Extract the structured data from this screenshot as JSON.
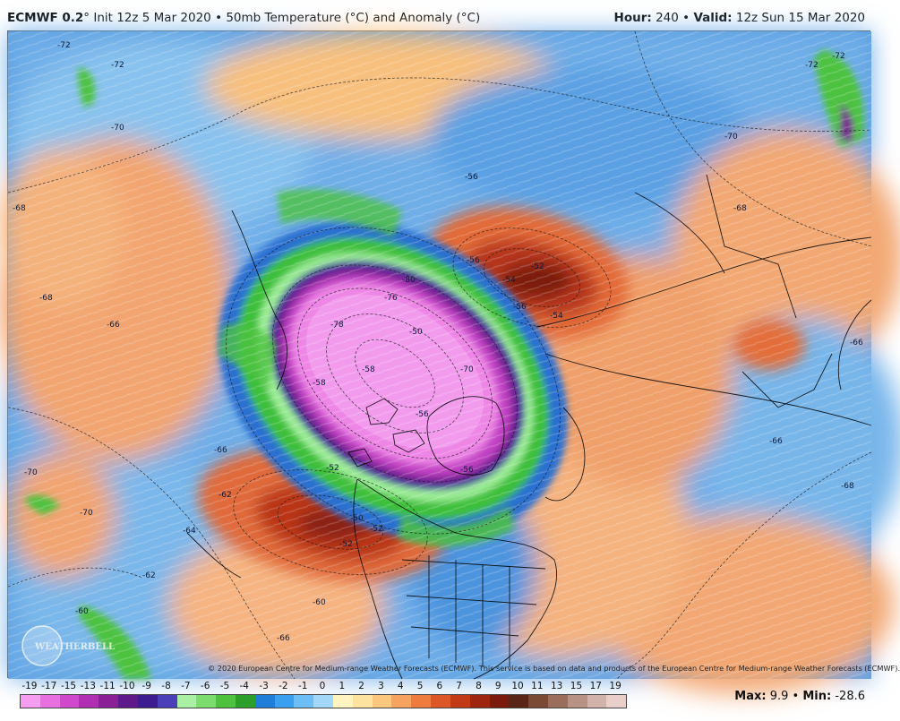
{
  "header": {
    "model": "ECMWF 0.2",
    "degree": "°",
    "init_text": "Init 12z 5 Mar 2020",
    "bullet": "•",
    "product": "50mb Temperature (°C) and Anomaly (°C)",
    "hour_label": "Hour:",
    "hour_value": "240",
    "valid_label": "Valid:",
    "valid_value": "12z Sun 15 Mar 2020"
  },
  "map": {
    "contour_labels": [
      {
        "text": "-72"
      },
      {
        "text": "-72"
      },
      {
        "text": "-72"
      },
      {
        "text": "-72"
      },
      {
        "text": "-70"
      },
      {
        "text": "-70"
      },
      {
        "text": "-70"
      },
      {
        "text": "-70"
      },
      {
        "text": "-68"
      },
      {
        "text": "-68"
      },
      {
        "text": "-68"
      },
      {
        "text": "-68"
      },
      {
        "text": "-66"
      },
      {
        "text": "-66"
      },
      {
        "text": "-66"
      },
      {
        "text": "-66"
      },
      {
        "text": "-62"
      },
      {
        "text": "-60"
      },
      {
        "text": "-60"
      },
      {
        "text": "-56"
      },
      {
        "text": "-52"
      },
      {
        "text": "-54"
      },
      {
        "text": "-56"
      },
      {
        "text": "-54"
      },
      {
        "text": "-50"
      },
      {
        "text": "-52"
      },
      {
        "text": "-52"
      },
      {
        "text": "-50"
      },
      {
        "text": "-52"
      },
      {
        "text": "-80"
      },
      {
        "text": "-78"
      },
      {
        "text": "-76"
      },
      {
        "text": "-70"
      },
      {
        "text": "-58"
      },
      {
        "text": "-56"
      },
      {
        "text": "-58"
      },
      {
        "text": "-56"
      },
      {
        "text": "-62"
      },
      {
        "text": "-64"
      },
      {
        "text": "-66"
      },
      {
        "text": "-56"
      }
    ],
    "logo_text": "WEATHERBELL",
    "copyright": "© 2020 European Centre for Medium-range Weather Forecasts (ECMWF). This service is based on data and products of the European Centre for Medium-range Weather Forecasts (ECMWF)."
  },
  "legend": {
    "labels": [
      "-19",
      "-17",
      "-15",
      "-13",
      "-11",
      "-10",
      "-9",
      "-8",
      "-7",
      "-6",
      "-5",
      "-4",
      "-3",
      "-2",
      "-1",
      "0",
      "1",
      "2",
      "3",
      "4",
      "5",
      "6",
      "7",
      "8",
      "9",
      "10",
      "11",
      "13",
      "15",
      "17",
      "19"
    ],
    "colors": [
      "#f59df0",
      "#e86fe0",
      "#d048cc",
      "#b02fb2",
      "#8a2095",
      "#5e1a8a",
      "#3c1c8f",
      "#4a3fb8",
      "#a9f0a3",
      "#7ddc6e",
      "#4ec23f",
      "#2c9e2a",
      "#1f7fd8",
      "#3b9ff0",
      "#6cbef5",
      "#a3d7f7",
      "#fff4c2",
      "#fde3a0",
      "#fbc67d",
      "#f6a35f",
      "#ee7c3f",
      "#dd5628",
      "#c23b16",
      "#9e2510",
      "#7a1a0d",
      "#5a2516",
      "#7b4a34",
      "#9a6e5b",
      "#b89385",
      "#d2b3ab",
      "#e8cfca"
    ]
  },
  "stats": {
    "max_label": "Max:",
    "max_value": "9.9",
    "sep": "•",
    "min_label": "Min:",
    "min_value": "-28.6"
  }
}
